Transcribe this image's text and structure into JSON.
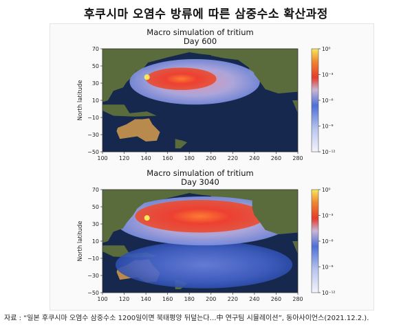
{
  "headline": "후쿠시마 오염수 방류에 따른 삼중수소 확산과정",
  "source_note": "자료 : “일본 후쿠시마 오염수 삼중수소 1200일이면 북태평양 뒤덮는다…中 연구팀 시뮬레이션”, 동아사이언스(2021.12.2.).",
  "colors": {
    "ocean": "#16284d",
    "land": "#5a6b3c",
    "desert": "#b88a4e",
    "cmap_low": "#f4f4fb",
    "cmap_mid_low": "#4e6fd8",
    "cmap_mid": "#e63a2a",
    "cmap_high": "#f7e85a"
  },
  "chart_data": [
    {
      "type": "heatmap",
      "title": "Macro simulation of tritium",
      "subtitle": "Day 600",
      "xlabel": "",
      "ylabel": "North latitude",
      "x_ticks": [
        "100",
        "120",
        "140",
        "160",
        "180",
        "200",
        "220",
        "240",
        "260",
        "280"
      ],
      "y_ticks": [
        "70",
        "50",
        "30",
        "10",
        "−10",
        "−30",
        "−50"
      ],
      "xlim": [
        100,
        280
      ],
      "ylim": [
        -50,
        70
      ],
      "colorbar": {
        "scale": "log",
        "range": [
          1e-12,
          1
        ],
        "tick_labels": [
          "10⁰",
          "10⁻³",
          "10⁻⁶",
          "10⁻⁹",
          "10⁻¹²"
        ]
      },
      "plume": {
        "source_lon": 141,
        "source_lat": 37,
        "core_lon_range": [
          140,
          205
        ],
        "core_lat_range": [
          22,
          48
        ],
        "extent_lon_range": [
          125,
          245
        ],
        "extent_lat_range": [
          5,
          58
        ]
      }
    },
    {
      "type": "heatmap",
      "title": "Macro simulation of tritium",
      "subtitle": "Day 3040",
      "xlabel": "",
      "ylabel": "North latitude",
      "x_ticks": [
        "100",
        "120",
        "140",
        "160",
        "180",
        "200",
        "220",
        "240",
        "260",
        "280"
      ],
      "y_ticks": [
        "70",
        "50",
        "30",
        "10",
        "−10",
        "−30",
        "−50"
      ],
      "xlim": [
        100,
        280
      ],
      "ylim": [
        -50,
        70
      ],
      "colorbar": {
        "scale": "log",
        "range": [
          1e-12,
          1
        ],
        "tick_labels": [
          "10⁰",
          "10⁻³",
          "10⁻⁶",
          "10⁻⁹",
          "10⁻¹²"
        ]
      },
      "plume": {
        "source_lon": 141,
        "source_lat": 37,
        "core_lon_range": [
          130,
          250
        ],
        "core_lat_range": [
          20,
          58
        ],
        "extent_lon_range": [
          112,
          275
        ],
        "extent_lat_range": [
          -45,
          62
        ]
      }
    }
  ]
}
